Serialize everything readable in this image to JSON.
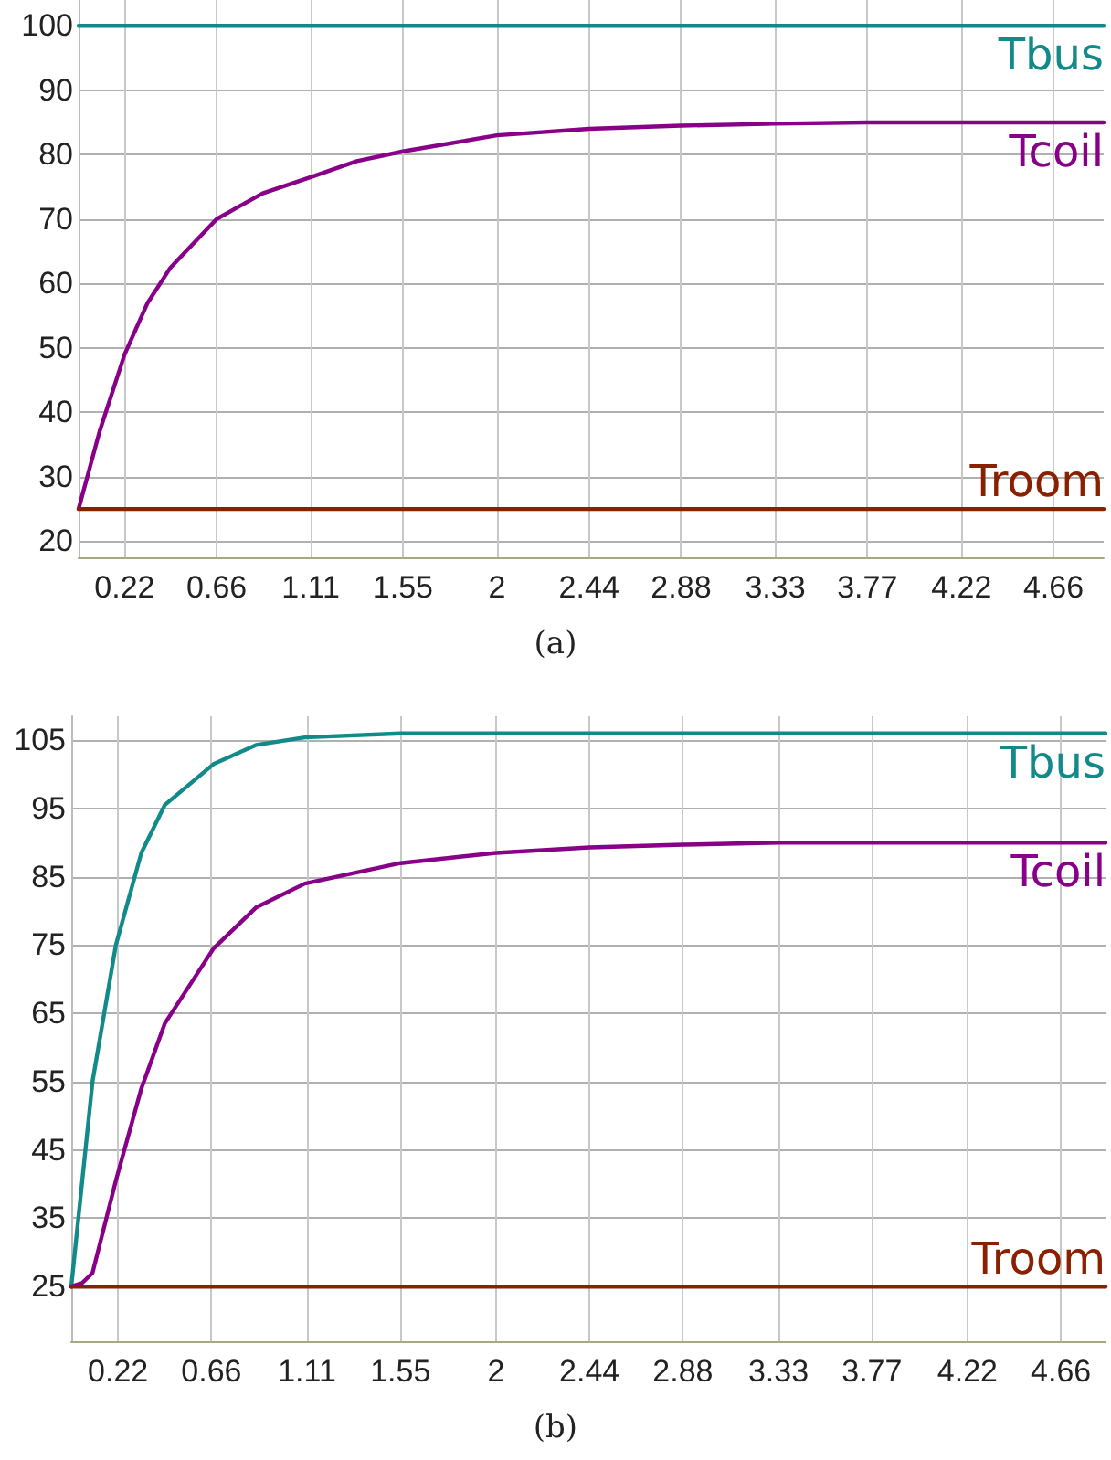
{
  "chart_data": [
    {
      "type": "line",
      "annotations": [
        "(a)"
      ],
      "xlim": [
        0,
        4.9
      ],
      "ylim": [
        17.5,
        104
      ],
      "xticks": [
        0.22,
        0.66,
        1.11,
        1.55,
        2,
        2.44,
        2.88,
        3.33,
        3.77,
        4.22,
        4.66
      ],
      "yticks": [
        20,
        30,
        40,
        50,
        60,
        70,
        80,
        90,
        100
      ],
      "grid": true,
      "marker": "none",
      "line_style": "solid",
      "series": [
        {
          "name": "Tbus",
          "color": "#138a8a",
          "x": [
            0,
            4.9
          ],
          "values": [
            100,
            100
          ]
        },
        {
          "name": "Tcoil",
          "color": "#880088",
          "x": [
            0,
            0.1,
            0.22,
            0.33,
            0.44,
            0.66,
            0.88,
            1.11,
            1.33,
            1.55,
            2,
            2.44,
            2.88,
            3.33,
            3.77,
            4.22,
            4.9
          ],
          "values": [
            25,
            37,
            49,
            57,
            62.5,
            70,
            74,
            76.5,
            79,
            80.5,
            83,
            84,
            84.5,
            84.8,
            85,
            85,
            85
          ]
        },
        {
          "name": "Troom",
          "color": "#8b2000",
          "x": [
            0,
            4.9
          ],
          "values": [
            25,
            25
          ]
        }
      ]
    },
    {
      "type": "line",
      "annotations": [
        "(b)"
      ],
      "xlim": [
        0,
        4.87
      ],
      "ylim": [
        17,
        108.5
      ],
      "xticks": [
        0.22,
        0.66,
        1.11,
        1.55,
        2,
        2.44,
        2.88,
        3.33,
        3.77,
        4.22,
        4.66
      ],
      "yticks": [
        25,
        35,
        45,
        55,
        65,
        75,
        85,
        95,
        105
      ],
      "grid": true,
      "marker": "none",
      "line_style": "solid",
      "series": [
        {
          "name": "Tbus",
          "color": "#138a8a",
          "x": [
            0,
            0.05,
            0.1,
            0.21,
            0.33,
            0.44,
            0.67,
            0.87,
            1.1,
            1.55,
            2,
            4.87
          ],
          "values": [
            25,
            40,
            55,
            75,
            88.5,
            95.5,
            101.5,
            104.3,
            105.4,
            106,
            106,
            106
          ]
        },
        {
          "name": "Tcoil",
          "color": "#880088",
          "x": [
            0,
            0.05,
            0.1,
            0.21,
            0.33,
            0.44,
            0.67,
            0.87,
            1.1,
            1.55,
            2,
            2.44,
            2.88,
            3.33,
            4.87
          ],
          "values": [
            25,
            25.5,
            27,
            40.5,
            54,
            63.5,
            74.5,
            80.5,
            84,
            87,
            88.5,
            89.3,
            89.7,
            90,
            90
          ]
        },
        {
          "name": "Troom",
          "color": "#8b2000",
          "x": [
            0,
            4.87
          ],
          "values": [
            25,
            25
          ]
        }
      ]
    }
  ]
}
